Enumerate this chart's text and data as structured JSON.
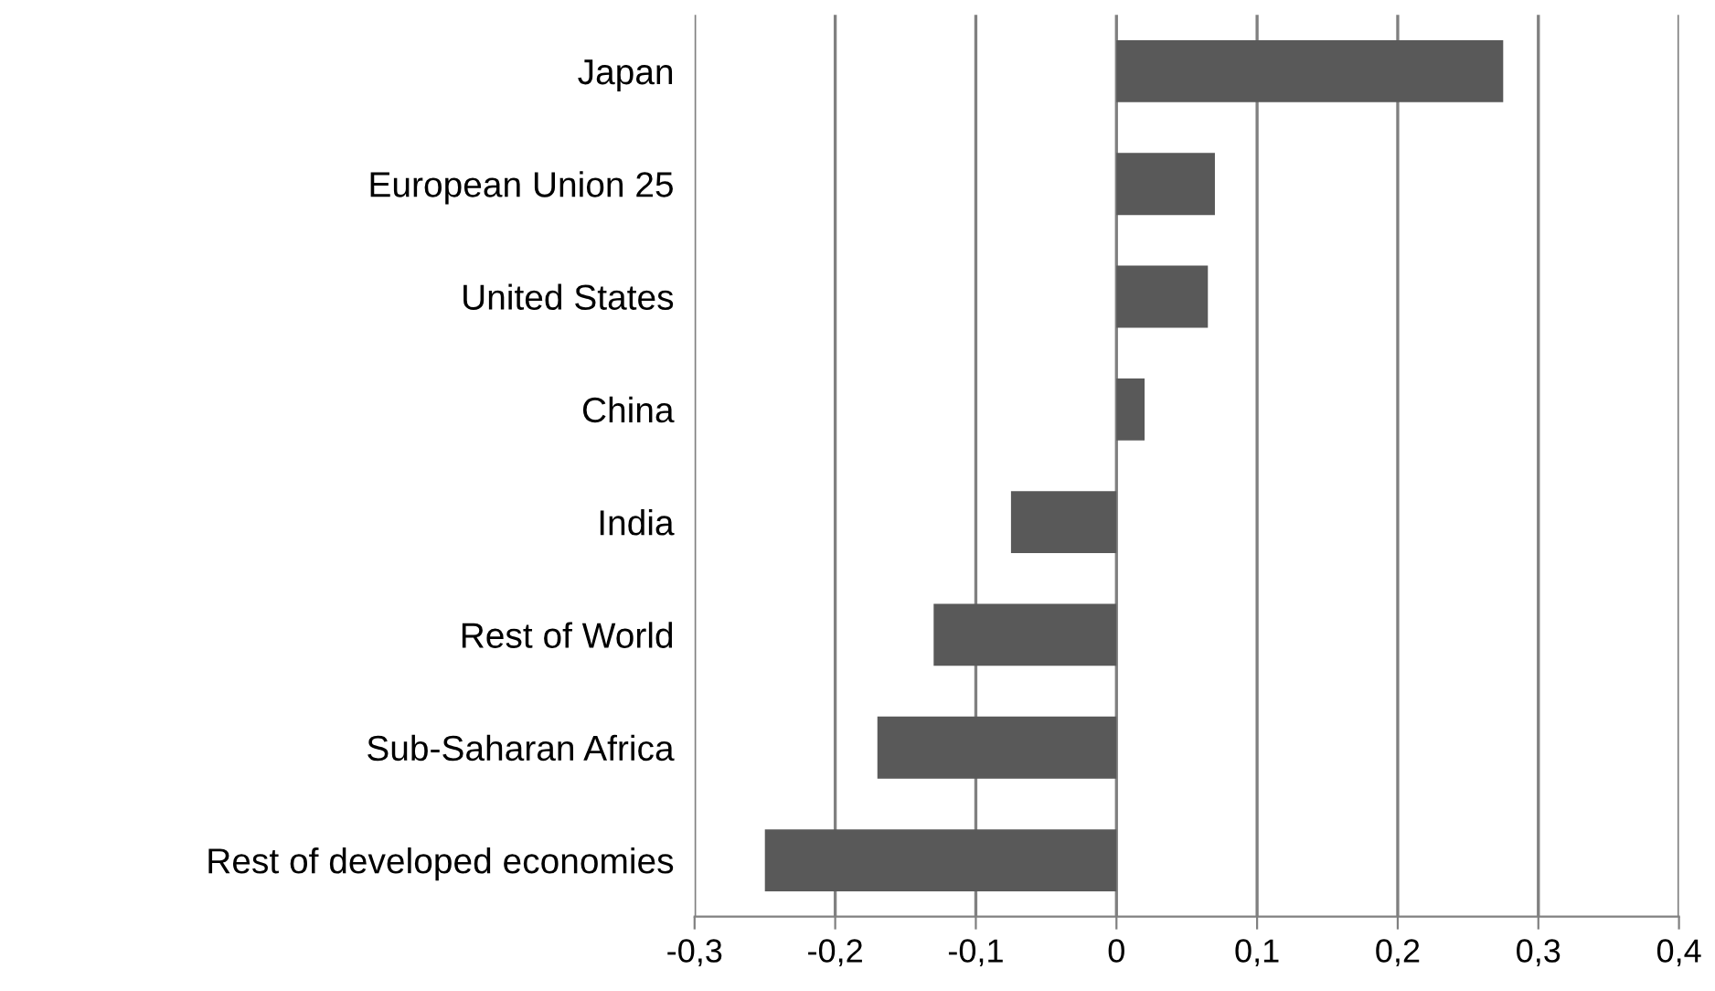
{
  "chart_data": {
    "type": "bar",
    "orientation": "horizontal",
    "categories": [
      "Japan",
      "European Union 25",
      "United States",
      "China",
      "India",
      "Rest of World",
      "Sub-Saharan Africa",
      "Rest of developed economies"
    ],
    "values": [
      0.275,
      0.07,
      0.065,
      0.02,
      -0.075,
      -0.13,
      -0.17,
      -0.25
    ],
    "color": "#595959",
    "xlim": [
      -0.3,
      0.4
    ],
    "xticks": [
      {
        "value": -0.3,
        "label": "-0,3"
      },
      {
        "value": -0.2,
        "label": "-0,2"
      },
      {
        "value": -0.1,
        "label": "-0,1"
      },
      0,
      {
        "value": 0.1,
        "label": "0,1"
      },
      {
        "value": 0.2,
        "label": "0,2"
      },
      {
        "value": 0.3,
        "label": "0,3"
      },
      {
        "value": 0.4,
        "label": "0,4"
      }
    ],
    "grid": "x",
    "legend": false
  }
}
